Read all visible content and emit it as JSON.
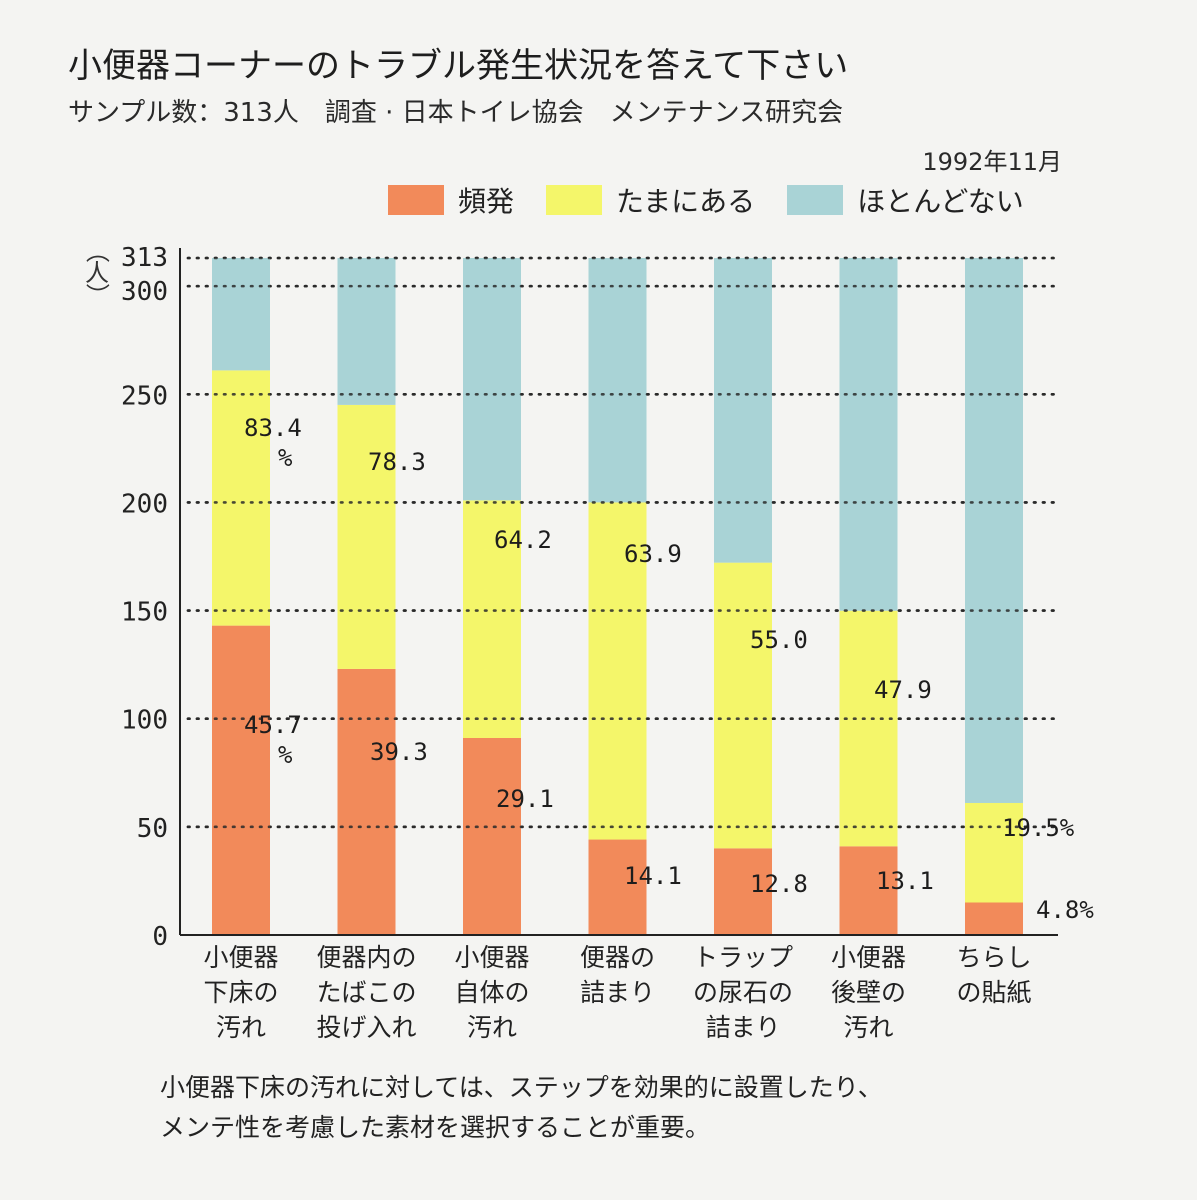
{
  "header": {
    "title": "小便器コーナーのトラブル発生状況を答えて下さい",
    "subtitle": "サンプル数：313人　調査 · 日本トイレ協会　メンテナンス研究会",
    "date": "1992年11月"
  },
  "legend": [
    {
      "label": "頻発",
      "color": "#f28a5a"
    },
    {
      "label": "たまにある",
      "color": "#f4f66a"
    },
    {
      "label": "ほとんどない",
      "color": "#a9d3d6"
    }
  ],
  "y_unit": "（人）",
  "caption": {
    "line1": "小便器下床の汚れに対しては、ステップを効果的に設置したり、",
    "line2": "メンテ性を考慮した素材を選択することが重要。"
  },
  "chart_data": {
    "type": "bar",
    "stacked": true,
    "title": "小便器コーナーのトラブル発生状況を答えて下さい",
    "subtitle": "サンプル数：313人　調査 · 日本トイレ協会　メンテナンス研究会",
    "xlabel": "",
    "ylabel": "（人）",
    "ylim": [
      0,
      313
    ],
    "yticks": [
      0,
      50,
      100,
      150,
      200,
      250,
      300,
      313
    ],
    "ytick_labels": [
      "0",
      "50",
      "100",
      "150",
      "200",
      "250",
      "300",
      "313"
    ],
    "grid": "dotted horizontal",
    "legend_position": "top-right",
    "sample_size": 313,
    "categories": [
      "小便器\n下床の\n汚れ",
      "便器内の\nたばこの\n投げ入れ",
      "小便器\n自体の\n汚れ",
      "便器の\n詰まり",
      "トラップ\nの尿石の\n詰まり",
      "小便器\n後壁の\n汚れ",
      "ちらし\nの貼紙"
    ],
    "series": [
      {
        "name": "頻発",
        "unit": "%",
        "values": [
          45.7,
          39.3,
          29.1,
          14.1,
          12.8,
          13.1,
          4.8
        ]
      },
      {
        "name": "たまにある",
        "unit": "%",
        "values": [
          37.7,
          39.0,
          35.1,
          49.8,
          42.2,
          34.8,
          14.7
        ]
      },
      {
        "name": "ほとんどない",
        "unit": "%",
        "values": [
          16.6,
          21.7,
          35.8,
          36.1,
          45.0,
          52.1,
          80.5
        ]
      }
    ],
    "data_labels": {
      "frequent": [
        "45.7\n%",
        "39.3",
        "29.1",
        "14.1",
        "12.8",
        "13.1",
        "4.8%"
      ],
      "cumulative_sometimes": [
        "83.4\n%",
        "78.3",
        "64.2",
        "63.9",
        "55.0",
        "47.9",
        "19.5%"
      ]
    },
    "cumulative_frequent_plus_sometimes": [
      83.4,
      78.3,
      64.2,
      63.9,
      55.0,
      47.9,
      19.5
    ]
  }
}
